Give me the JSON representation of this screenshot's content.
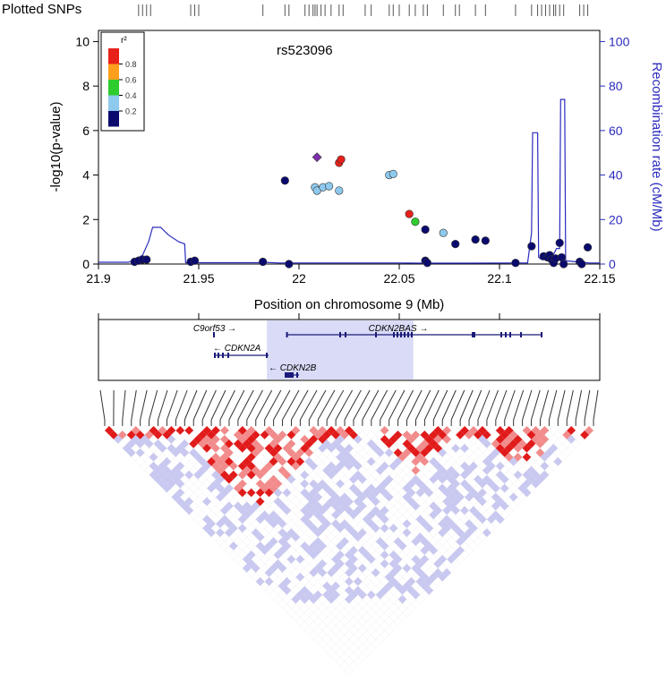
{
  "chart_data": {
    "type": "scatter",
    "title": "rs523096",
    "plotted_snps_label": "Plotted SNPs",
    "xlabel": "Position on chromosome 9 (Mb)",
    "ylabel": "-log10(p-value)",
    "y2label": "Recombination rate (cM/Mb)",
    "xlim": [
      21.9,
      22.15
    ],
    "ylim": [
      0,
      10.5
    ],
    "y2lim": [
      0,
      105
    ],
    "x_ticks": [
      "21.9",
      "21.95",
      "22",
      "22.05",
      "22.1",
      "22.15"
    ],
    "y_ticks": [
      "0",
      "2",
      "4",
      "6",
      "8",
      "10"
    ],
    "y2_ticks": [
      "0",
      "20",
      "40",
      "60",
      "80",
      "100"
    ],
    "legend": {
      "title": "r²",
      "labels": [
        "0.8",
        "0.6",
        "0.4",
        "0.2"
      ],
      "colors": [
        "#e8201a",
        "#ff9f1c",
        "#2ecc2e",
        "#8ec9ee",
        "#0a0a6e"
      ]
    },
    "lead_snp": {
      "x": 22.009,
      "y": 4.8
    },
    "points": [
      {
        "x": 21.918,
        "y": 0.1,
        "r2": 0.1
      },
      {
        "x": 21.92,
        "y": 0.15,
        "r2": 0.1
      },
      {
        "x": 21.922,
        "y": 0.2,
        "r2": 0.1
      },
      {
        "x": 21.924,
        "y": 0.2,
        "r2": 0.1
      },
      {
        "x": 21.946,
        "y": 0.1,
        "r2": 0.1
      },
      {
        "x": 21.948,
        "y": 0.15,
        "r2": 0.1
      },
      {
        "x": 21.982,
        "y": 0.1,
        "r2": 0.1
      },
      {
        "x": 21.993,
        "y": 3.75,
        "r2": 0.1
      },
      {
        "x": 21.995,
        "y": 0.0,
        "r2": 0.1
      },
      {
        "x": 22.008,
        "y": 3.45,
        "r2": 0.3
      },
      {
        "x": 22.009,
        "y": 3.3,
        "r2": 0.3
      },
      {
        "x": 22.012,
        "y": 3.45,
        "r2": 0.3
      },
      {
        "x": 22.015,
        "y": 3.5,
        "r2": 0.3
      },
      {
        "x": 22.02,
        "y": 3.3,
        "r2": 0.3
      },
      {
        "x": 22.02,
        "y": 4.55,
        "r2": 0.85
      },
      {
        "x": 22.021,
        "y": 4.7,
        "r2": 0.85
      },
      {
        "x": 22.045,
        "y": 4.0,
        "r2": 0.3
      },
      {
        "x": 22.047,
        "y": 4.05,
        "r2": 0.3
      },
      {
        "x": 22.055,
        "y": 2.25,
        "r2": 0.85
      },
      {
        "x": 22.058,
        "y": 1.9,
        "r2": 0.45
      },
      {
        "x": 22.063,
        "y": 1.55,
        "r2": 0.1
      },
      {
        "x": 22.063,
        "y": 0.15,
        "r2": 0.1
      },
      {
        "x": 22.064,
        "y": 0.05,
        "r2": 0.1
      },
      {
        "x": 22.072,
        "y": 1.4,
        "r2": 0.3
      },
      {
        "x": 22.078,
        "y": 0.9,
        "r2": 0.1
      },
      {
        "x": 22.088,
        "y": 1.1,
        "r2": 0.1
      },
      {
        "x": 22.093,
        "y": 1.05,
        "r2": 0.1
      },
      {
        "x": 22.108,
        "y": 0.05,
        "r2": 0.1
      },
      {
        "x": 22.116,
        "y": 0.8,
        "r2": 0.1
      },
      {
        "x": 22.122,
        "y": 0.35,
        "r2": 0.1
      },
      {
        "x": 22.124,
        "y": 0.3,
        "r2": 0.1
      },
      {
        "x": 22.125,
        "y": 0.4,
        "r2": 0.1
      },
      {
        "x": 22.126,
        "y": 0.2,
        "r2": 0.1
      },
      {
        "x": 22.127,
        "y": 0.05,
        "r2": 0.1
      },
      {
        "x": 22.128,
        "y": 0.25,
        "r2": 0.1
      },
      {
        "x": 22.13,
        "y": 0.95,
        "r2": 0.1
      },
      {
        "x": 22.131,
        "y": 0.3,
        "r2": 0.1
      },
      {
        "x": 22.132,
        "y": 0.0,
        "r2": 0.1
      },
      {
        "x": 22.14,
        "y": 0.1,
        "r2": 0.1
      },
      {
        "x": 22.141,
        "y": 0.0,
        "r2": 0.1
      },
      {
        "x": 22.144,
        "y": 0.75,
        "r2": 0.1
      }
    ],
    "recombination": [
      [
        21.9,
        0.8
      ],
      [
        21.915,
        0.8
      ],
      [
        21.918,
        2
      ],
      [
        21.922,
        4
      ],
      [
        21.925,
        10
      ],
      [
        21.927,
        16.5
      ],
      [
        21.931,
        16.5
      ],
      [
        21.935,
        13
      ],
      [
        21.94,
        10
      ],
      [
        21.943,
        9
      ],
      [
        21.9435,
        0.6
      ],
      [
        21.96,
        0.6
      ],
      [
        21.98,
        0.6
      ],
      [
        21.982,
        0.8
      ],
      [
        21.99,
        0.5
      ],
      [
        22.0,
        0.5
      ],
      [
        22.02,
        0.5
      ],
      [
        22.05,
        0.5
      ],
      [
        22.06,
        0.4
      ],
      [
        22.075,
        0.4
      ],
      [
        22.085,
        0.4
      ],
      [
        22.108,
        0.5
      ],
      [
        22.114,
        0.5
      ],
      [
        22.116,
        14
      ],
      [
        22.1165,
        59
      ],
      [
        22.119,
        59
      ],
      [
        22.1195,
        3
      ],
      [
        22.121,
        2
      ],
      [
        22.124,
        2
      ],
      [
        22.127,
        4.5
      ],
      [
        22.1285,
        7
      ],
      [
        22.13,
        7
      ],
      [
        22.1305,
        74
      ],
      [
        22.1325,
        74
      ],
      [
        22.133,
        1.5
      ],
      [
        22.14,
        0.8
      ],
      [
        22.145,
        0.5
      ],
      [
        22.15,
        0.5
      ]
    ],
    "snp_ticks": [
      21.92,
      21.922,
      21.924,
      21.926,
      21.946,
      21.948,
      21.95,
      21.982,
      21.993,
      21.995,
      22.003,
      22.005,
      22.007,
      22.008,
      22.009,
      22.011,
      22.013,
      22.016,
      22.02,
      22.022,
      22.033,
      22.036,
      22.045,
      22.047,
      22.05,
      22.055,
      22.058,
      22.062,
      22.064,
      22.072,
      22.078,
      22.08,
      22.088,
      22.093,
      22.108,
      22.116,
      22.119,
      22.121,
      22.123,
      22.125,
      22.127,
      22.128,
      22.13,
      22.132,
      22.14,
      22.142,
      22.144
    ]
  },
  "genes": [
    {
      "name": "C9orf53",
      "start": 21.967,
      "end": 21.968,
      "strand": "+",
      "row": 0
    },
    {
      "name": "CDKN2BAS",
      "start": 21.994,
      "end": 22.121,
      "strand": "+",
      "row": 0
    },
    {
      "name": "CDKN2A",
      "start": 21.967,
      "end": 21.995,
      "strand": "-",
      "row": 1
    },
    {
      "name": "CDKN2B",
      "start": 22.002,
      "end": 22.009,
      "strand": "-",
      "row": 2
    }
  ],
  "gene_highlight": {
    "start": 21.984,
    "end": 22.057
  },
  "ld_block_note": "LD heatmap"
}
